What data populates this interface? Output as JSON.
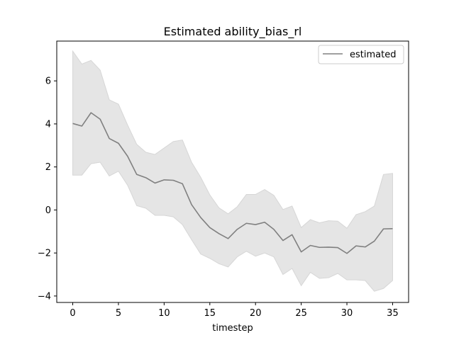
{
  "chart_data": {
    "type": "line",
    "title": "Estimated ability_bias_rl",
    "xlabel": "timestep",
    "ylabel": "",
    "xlim": [
      -1.75,
      36.75
    ],
    "ylim": [
      -4.3,
      7.85
    ],
    "xticks": [
      0,
      5,
      10,
      15,
      20,
      25,
      30,
      35
    ],
    "yticks": [
      -4,
      -2,
      0,
      2,
      4,
      6
    ],
    "grid": false,
    "legend": {
      "placement": "top-right",
      "entries": [
        "estimated"
      ]
    },
    "colors": {
      "line": "#808080",
      "band": "#e5e5e5",
      "band_edge": "#d6d6d6"
    },
    "series": [
      {
        "name": "estimated",
        "x": [
          0,
          1,
          2,
          3,
          4,
          5,
          6,
          7,
          8,
          9,
          10,
          11,
          12,
          13,
          14,
          15,
          16,
          17,
          18,
          19,
          20,
          21,
          22,
          23,
          24,
          25,
          26,
          27,
          28,
          29,
          30,
          31,
          32,
          33,
          34,
          35
        ],
        "y": [
          4.02,
          3.9,
          4.52,
          4.22,
          3.32,
          3.1,
          2.5,
          1.65,
          1.5,
          1.25,
          1.4,
          1.38,
          1.22,
          0.25,
          -0.35,
          -0.82,
          -1.1,
          -1.33,
          -0.9,
          -0.62,
          -0.68,
          -0.57,
          -0.9,
          -1.42,
          -1.15,
          -1.95,
          -1.65,
          -1.74,
          -1.73,
          -1.75,
          -2.02,
          -1.67,
          -1.72,
          -1.45,
          -0.88,
          -0.87
        ],
        "upper": [
          7.38,
          6.78,
          6.95,
          6.5,
          5.12,
          4.92,
          3.95,
          3.05,
          2.68,
          2.58,
          2.88,
          3.18,
          3.25,
          2.22,
          1.52,
          0.7,
          0.1,
          -0.18,
          0.15,
          0.72,
          0.72,
          0.95,
          0.68,
          0.02,
          0.18,
          -0.82,
          -0.45,
          -0.6,
          -0.5,
          -0.52,
          -0.85,
          -0.22,
          -0.08,
          0.18,
          1.65,
          1.7
        ],
        "lower": [
          1.62,
          1.62,
          2.15,
          2.22,
          1.58,
          1.8,
          1.15,
          0.2,
          0.08,
          -0.25,
          -0.25,
          -0.32,
          -0.68,
          -1.38,
          -2.05,
          -2.25,
          -2.5,
          -2.65,
          -2.18,
          -1.92,
          -2.15,
          -2.0,
          -2.18,
          -3.0,
          -2.72,
          -3.52,
          -2.9,
          -3.18,
          -3.15,
          -2.95,
          -3.25,
          -3.25,
          -3.28,
          -3.78,
          -3.65,
          -3.28
        ]
      }
    ]
  }
}
